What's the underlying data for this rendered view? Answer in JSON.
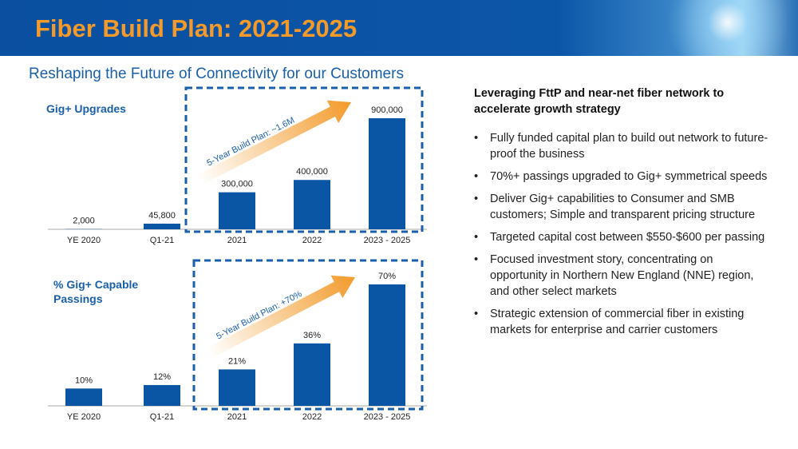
{
  "header": {
    "title": "Fiber Build Plan: 2021-2025",
    "subtitle": "Reshaping the Future of Connectivity for our Customers"
  },
  "chart_data": [
    {
      "type": "bar",
      "title": "Gig+ Upgrades",
      "categories": [
        "YE 2020",
        "Q1-21",
        "2021",
        "2022",
        "2023 - 2025"
      ],
      "values": [
        2000,
        45800,
        300000,
        400000,
        900000
      ],
      "labels": [
        "2,000",
        "45,800",
        "300,000",
        "400,000",
        "900,000"
      ],
      "annotation": "5-Year Build Plan: ~1.6M",
      "ylim": [
        0,
        900000
      ],
      "bar_color": "#0b55a5",
      "arrow_color": "#f39a2a"
    },
    {
      "type": "bar",
      "title": "% Gig+ Capable Passings",
      "categories": [
        "YE 2020",
        "Q1-21",
        "2021",
        "2022",
        "2023 - 2025"
      ],
      "values": [
        10,
        12,
        21,
        36,
        70
      ],
      "labels": [
        "10%",
        "12%",
        "21%",
        "36%",
        "70%"
      ],
      "annotation": "5-Year Build Plan: +70%",
      "ylim": [
        0,
        70
      ],
      "bar_color": "#0b55a5",
      "arrow_color": "#f39a2a"
    }
  ],
  "right": {
    "heading": "Leveraging FttP and near-net fiber network to accelerate growth strategy",
    "bullet": "•",
    "bullets": [
      "Fully funded capital plan to build out network to future-proof the business",
      "70%+ passings upgraded to Gig+ symmetrical speeds",
      "Deliver Gig+ capabilities to Consumer and SMB customers; Simple and transparent pricing structure",
      "Targeted capital cost between $550-$600 per passing",
      "Focused investment story, concentrating on opportunity in Northern New England (NNE) region, and other select markets",
      "Strategic extension of commercial fiber in existing markets for enterprise and carrier customers"
    ]
  }
}
